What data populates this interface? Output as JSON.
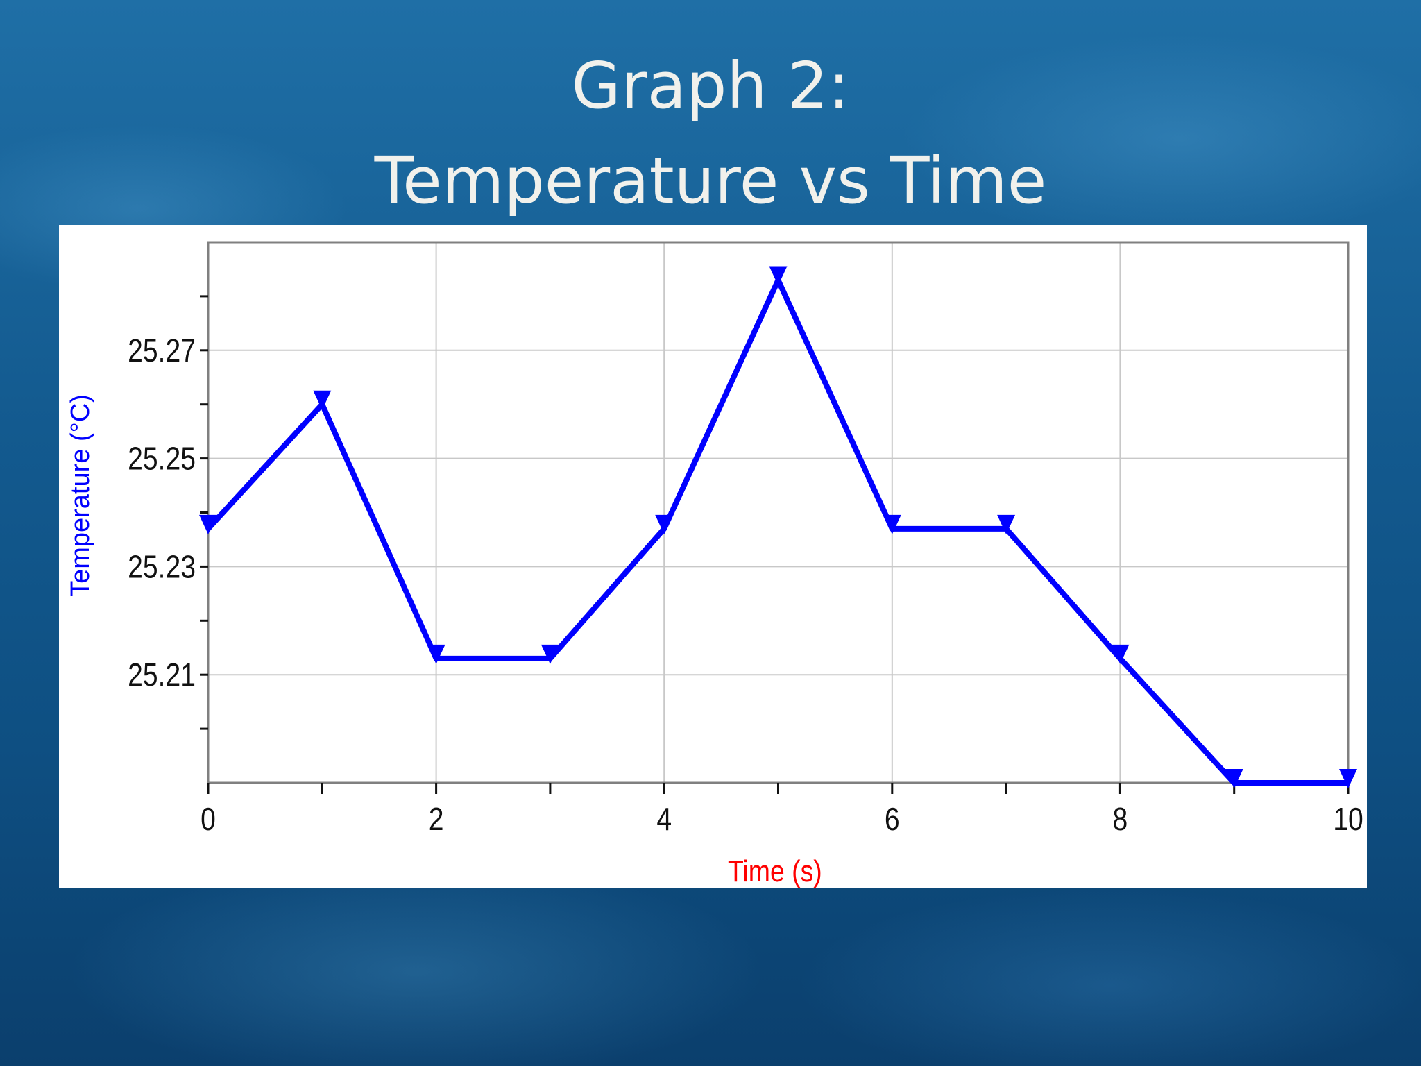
{
  "slide": {
    "title_line1": "Graph 2:",
    "title_line2": "Temperature vs Time"
  },
  "chart_data": {
    "type": "line",
    "title": "",
    "xlabel": "Time (s)",
    "ylabel": "Temperature (°C)",
    "xlim": [
      0,
      10
    ],
    "ylim": [
      25.19,
      25.29
    ],
    "x_ticks": [
      0,
      2,
      4,
      6,
      8,
      10
    ],
    "y_ticks": [
      25.21,
      25.23,
      25.25,
      25.27
    ],
    "y_tick_labels": [
      "25.21",
      "25.23",
      "25.25",
      "25.27"
    ],
    "grid": true,
    "marker": "down-triangle",
    "colors": {
      "series": "#0000ff",
      "xlabel": "#ff0000",
      "ylabel": "#0000ff"
    },
    "series": [
      {
        "x": [
          0,
          1,
          2,
          3,
          4,
          5,
          6,
          7,
          8,
          9,
          10
        ],
        "values": [
          25.237,
          25.26,
          25.213,
          25.213,
          25.237,
          25.283,
          25.237,
          25.237,
          25.213,
          25.19,
          25.19
        ]
      }
    ]
  }
}
